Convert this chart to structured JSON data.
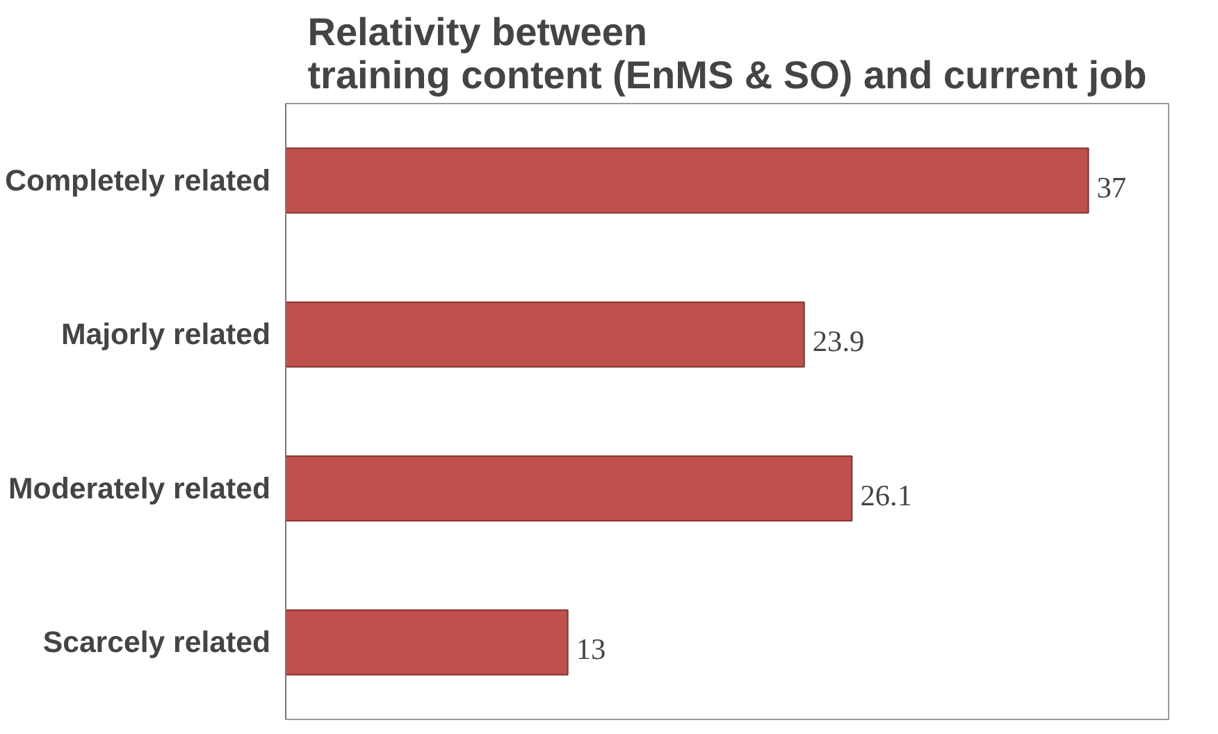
{
  "chart_data": {
    "type": "bar",
    "orientation": "horizontal",
    "title": "Relativity between\ntraining content (EnMS & SO) and current job",
    "categories": [
      "Completely related",
      "Majorly related",
      "Moderately related",
      "Scarcely related"
    ],
    "values": [
      37,
      23.9,
      26.1,
      13
    ],
    "color": "#c0504d",
    "data_labels": true,
    "grid": false
  }
}
